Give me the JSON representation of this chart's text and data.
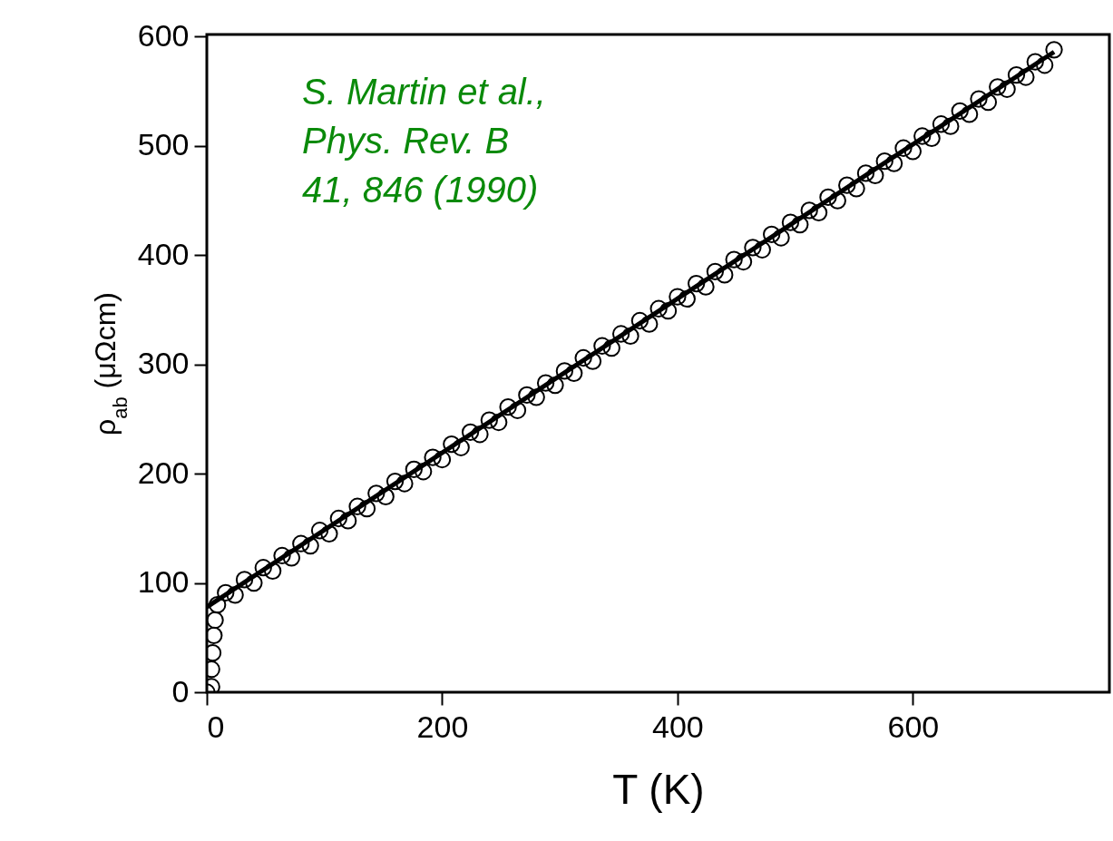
{
  "chart_data": {
    "type": "scatter",
    "xlabel": "T (K)",
    "ylabel": "ρ$_{ab}$ (μΩcm)",
    "xlim": [
      0,
      767
    ],
    "ylim": [
      0,
      602
    ],
    "xticks": [
      0,
      200,
      400,
      600
    ],
    "yticks": [
      0,
      100,
      200,
      300,
      400,
      500,
      600
    ],
    "grid": false,
    "annotations": [
      "S. Martin et al.,",
      "Phys. Rev. B",
      "41, 846 (1990)"
    ],
    "series": [
      {
        "color": "#000000",
        "marker": "circle",
        "x": [
          0,
          4,
          4,
          5,
          6,
          7,
          9,
          16,
          24,
          32,
          40,
          48,
          56,
          64,
          72,
          80,
          88,
          96,
          104,
          112,
          120,
          128,
          136,
          144,
          152,
          160,
          168,
          176,
          184,
          192,
          200,
          208,
          216,
          224,
          232,
          240,
          248,
          256,
          264,
          272,
          280,
          288,
          296,
          304,
          312,
          320,
          328,
          336,
          344,
          352,
          360,
          368,
          376,
          384,
          392,
          400,
          408,
          416,
          424,
          432,
          440,
          448,
          456,
          464,
          472,
          480,
          488,
          496,
          504,
          512,
          520,
          528,
          536,
          544,
          552,
          560,
          568,
          576,
          584,
          592,
          600,
          608,
          616,
          624,
          632,
          640,
          648,
          656,
          664,
          672,
          680,
          688,
          696,
          704,
          712,
          720
        ],
        "values": [
          0,
          5,
          21,
          36,
          52,
          66,
          80,
          91,
          89,
          103,
          100,
          114,
          111,
          125,
          123,
          136,
          134,
          148,
          145,
          159,
          157,
          170,
          168,
          182,
          179,
          193,
          191,
          204,
          202,
          215,
          213,
          227,
          224,
          238,
          236,
          249,
          247,
          261,
          258,
          272,
          270,
          283,
          281,
          294,
          292,
          306,
          303,
          317,
          315,
          328,
          326,
          340,
          337,
          351,
          349,
          362,
          360,
          374,
          371,
          385,
          382,
          396,
          394,
          407,
          405,
          419,
          416,
          430,
          428,
          441,
          439,
          453,
          450,
          464,
          461,
          475,
          473,
          486,
          484,
          498,
          495,
          509,
          507,
          520,
          518,
          532,
          529,
          543,
          540,
          554,
          552,
          565,
          563,
          577,
          574,
          588
        ]
      },
      {
        "type": "line",
        "color": "#000000",
        "line_style": "solid",
        "x": [
          0,
          720
        ],
        "values": [
          78,
          586
        ]
      }
    ]
  }
}
